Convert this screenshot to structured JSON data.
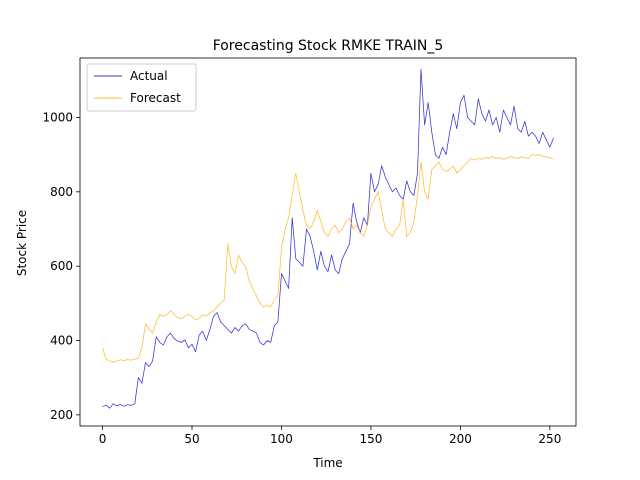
{
  "chart_data": {
    "type": "line",
    "title": "Forecasting Stock RMKE TRAIN_5",
    "xlabel": "Time",
    "ylabel": "Stock Price",
    "xlim": [
      -12.6,
      264.6
    ],
    "ylim": [
      170,
      1160
    ],
    "xticks": [
      0,
      50,
      100,
      150,
      200,
      250
    ],
    "yticks": [
      200,
      400,
      600,
      800,
      1000
    ],
    "grid": false,
    "legend_position": "top-left",
    "series": [
      {
        "name": "Actual",
        "color": "#0000cc",
        "points": [
          [
            0,
            222
          ],
          [
            2,
            226
          ],
          [
            4,
            218
          ],
          [
            6,
            230
          ],
          [
            8,
            224
          ],
          [
            10,
            228
          ],
          [
            12,
            223
          ],
          [
            14,
            227
          ],
          [
            16,
            226
          ],
          [
            18,
            230
          ],
          [
            20,
            300
          ],
          [
            22,
            285
          ],
          [
            24,
            340
          ],
          [
            26,
            330
          ],
          [
            28,
            345
          ],
          [
            30,
            410
          ],
          [
            32,
            395
          ],
          [
            34,
            388
          ],
          [
            36,
            410
          ],
          [
            38,
            420
          ],
          [
            40,
            405
          ],
          [
            42,
            398
          ],
          [
            44,
            395
          ],
          [
            46,
            402
          ],
          [
            48,
            380
          ],
          [
            50,
            390
          ],
          [
            52,
            370
          ],
          [
            54,
            415
          ],
          [
            56,
            425
          ],
          [
            58,
            400
          ],
          [
            60,
            430
          ],
          [
            62,
            465
          ],
          [
            64,
            475
          ],
          [
            66,
            450
          ],
          [
            68,
            440
          ],
          [
            70,
            430
          ],
          [
            72,
            420
          ],
          [
            74,
            435
          ],
          [
            76,
            425
          ],
          [
            78,
            440
          ],
          [
            80,
            445
          ],
          [
            82,
            430
          ],
          [
            84,
            425
          ],
          [
            86,
            420
          ],
          [
            88,
            395
          ],
          [
            90,
            388
          ],
          [
            92,
            400
          ],
          [
            94,
            395
          ],
          [
            96,
            440
          ],
          [
            98,
            450
          ],
          [
            100,
            580
          ],
          [
            102,
            560
          ],
          [
            104,
            540
          ],
          [
            106,
            730
          ],
          [
            108,
            620
          ],
          [
            110,
            610
          ],
          [
            112,
            600
          ],
          [
            114,
            700
          ],
          [
            116,
            680
          ],
          [
            118,
            640
          ],
          [
            120,
            590
          ],
          [
            122,
            640
          ],
          [
            124,
            600
          ],
          [
            126,
            585
          ],
          [
            128,
            630
          ],
          [
            130,
            590
          ],
          [
            132,
            580
          ],
          [
            134,
            620
          ],
          [
            136,
            640
          ],
          [
            138,
            660
          ],
          [
            140,
            770
          ],
          [
            142,
            720
          ],
          [
            144,
            690
          ],
          [
            146,
            730
          ],
          [
            148,
            710
          ],
          [
            150,
            850
          ],
          [
            152,
            800
          ],
          [
            154,
            820
          ],
          [
            156,
            870
          ],
          [
            158,
            840
          ],
          [
            160,
            820
          ],
          [
            162,
            800
          ],
          [
            164,
            810
          ],
          [
            166,
            790
          ],
          [
            168,
            780
          ],
          [
            170,
            830
          ],
          [
            172,
            800
          ],
          [
            174,
            790
          ],
          [
            176,
            850
          ],
          [
            178,
            1130
          ],
          [
            180,
            980
          ],
          [
            182,
            1040
          ],
          [
            184,
            960
          ],
          [
            186,
            900
          ],
          [
            188,
            890
          ],
          [
            190,
            920
          ],
          [
            192,
            900
          ],
          [
            194,
            960
          ],
          [
            196,
            1010
          ],
          [
            198,
            970
          ],
          [
            200,
            1040
          ],
          [
            202,
            1060
          ],
          [
            204,
            1000
          ],
          [
            206,
            990
          ],
          [
            208,
            980
          ],
          [
            210,
            1050
          ],
          [
            212,
            1010
          ],
          [
            214,
            990
          ],
          [
            216,
            1020
          ],
          [
            218,
            980
          ],
          [
            220,
            1000
          ],
          [
            222,
            960
          ],
          [
            224,
            1020
          ],
          [
            226,
            1000
          ],
          [
            228,
            980
          ],
          [
            230,
            1030
          ],
          [
            232,
            970
          ],
          [
            234,
            960
          ],
          [
            236,
            990
          ],
          [
            238,
            950
          ],
          [
            240,
            960
          ],
          [
            242,
            950
          ],
          [
            244,
            930
          ],
          [
            246,
            960
          ],
          [
            248,
            940
          ],
          [
            250,
            920
          ],
          [
            252,
            945
          ]
        ]
      },
      {
        "name": "Forecast",
        "color": "#ffaa00",
        "points": [
          [
            0,
            380
          ],
          [
            2,
            350
          ],
          [
            4,
            345
          ],
          [
            6,
            342
          ],
          [
            8,
            345
          ],
          [
            10,
            348
          ],
          [
            12,
            346
          ],
          [
            14,
            349
          ],
          [
            16,
            347
          ],
          [
            18,
            350
          ],
          [
            20,
            352
          ],
          [
            22,
            380
          ],
          [
            24,
            445
          ],
          [
            26,
            430
          ],
          [
            28,
            420
          ],
          [
            30,
            450
          ],
          [
            32,
            470
          ],
          [
            34,
            465
          ],
          [
            36,
            470
          ],
          [
            38,
            480
          ],
          [
            40,
            470
          ],
          [
            42,
            462
          ],
          [
            44,
            458
          ],
          [
            46,
            465
          ],
          [
            48,
            470
          ],
          [
            50,
            465
          ],
          [
            52,
            455
          ],
          [
            54,
            460
          ],
          [
            56,
            470
          ],
          [
            58,
            465
          ],
          [
            60,
            475
          ],
          [
            62,
            480
          ],
          [
            64,
            490
          ],
          [
            66,
            500
          ],
          [
            68,
            510
          ],
          [
            70,
            660
          ],
          [
            72,
            600
          ],
          [
            74,
            580
          ],
          [
            76,
            630
          ],
          [
            78,
            610
          ],
          [
            80,
            600
          ],
          [
            82,
            560
          ],
          [
            84,
            540
          ],
          [
            86,
            520
          ],
          [
            88,
            500
          ],
          [
            90,
            490
          ],
          [
            92,
            495
          ],
          [
            94,
            490
          ],
          [
            96,
            510
          ],
          [
            98,
            520
          ],
          [
            100,
            650
          ],
          [
            102,
            700
          ],
          [
            104,
            730
          ],
          [
            106,
            790
          ],
          [
            108,
            850
          ],
          [
            110,
            800
          ],
          [
            112,
            750
          ],
          [
            114,
            710
          ],
          [
            116,
            700
          ],
          [
            118,
            720
          ],
          [
            120,
            750
          ],
          [
            122,
            720
          ],
          [
            124,
            690
          ],
          [
            126,
            680
          ],
          [
            128,
            700
          ],
          [
            130,
            710
          ],
          [
            132,
            690
          ],
          [
            134,
            700
          ],
          [
            136,
            720
          ],
          [
            138,
            730
          ],
          [
            140,
            700
          ],
          [
            142,
            710
          ],
          [
            144,
            690
          ],
          [
            146,
            680
          ],
          [
            148,
            710
          ],
          [
            150,
            760
          ],
          [
            152,
            780
          ],
          [
            154,
            800
          ],
          [
            156,
            750
          ],
          [
            158,
            700
          ],
          [
            160,
            690
          ],
          [
            162,
            680
          ],
          [
            164,
            700
          ],
          [
            166,
            710
          ],
          [
            168,
            780
          ],
          [
            170,
            680
          ],
          [
            172,
            690
          ],
          [
            174,
            720
          ],
          [
            176,
            790
          ],
          [
            178,
            880
          ],
          [
            180,
            800
          ],
          [
            182,
            780
          ],
          [
            184,
            860
          ],
          [
            186,
            870
          ],
          [
            188,
            880
          ],
          [
            190,
            860
          ],
          [
            192,
            855
          ],
          [
            194,
            860
          ],
          [
            196,
            870
          ],
          [
            198,
            850
          ],
          [
            200,
            860
          ],
          [
            202,
            870
          ],
          [
            204,
            880
          ],
          [
            206,
            890
          ],
          [
            208,
            885
          ],
          [
            210,
            890
          ],
          [
            212,
            888
          ],
          [
            214,
            892
          ],
          [
            216,
            890
          ],
          [
            218,
            895
          ],
          [
            220,
            890
          ],
          [
            222,
            892
          ],
          [
            224,
            888
          ],
          [
            226,
            890
          ],
          [
            228,
            895
          ],
          [
            230,
            892
          ],
          [
            232,
            890
          ],
          [
            234,
            894
          ],
          [
            236,
            892
          ],
          [
            238,
            890
          ],
          [
            240,
            900
          ],
          [
            242,
            898
          ],
          [
            244,
            900
          ],
          [
            246,
            896
          ],
          [
            248,
            894
          ],
          [
            250,
            892
          ],
          [
            252,
            888
          ]
        ]
      }
    ]
  }
}
